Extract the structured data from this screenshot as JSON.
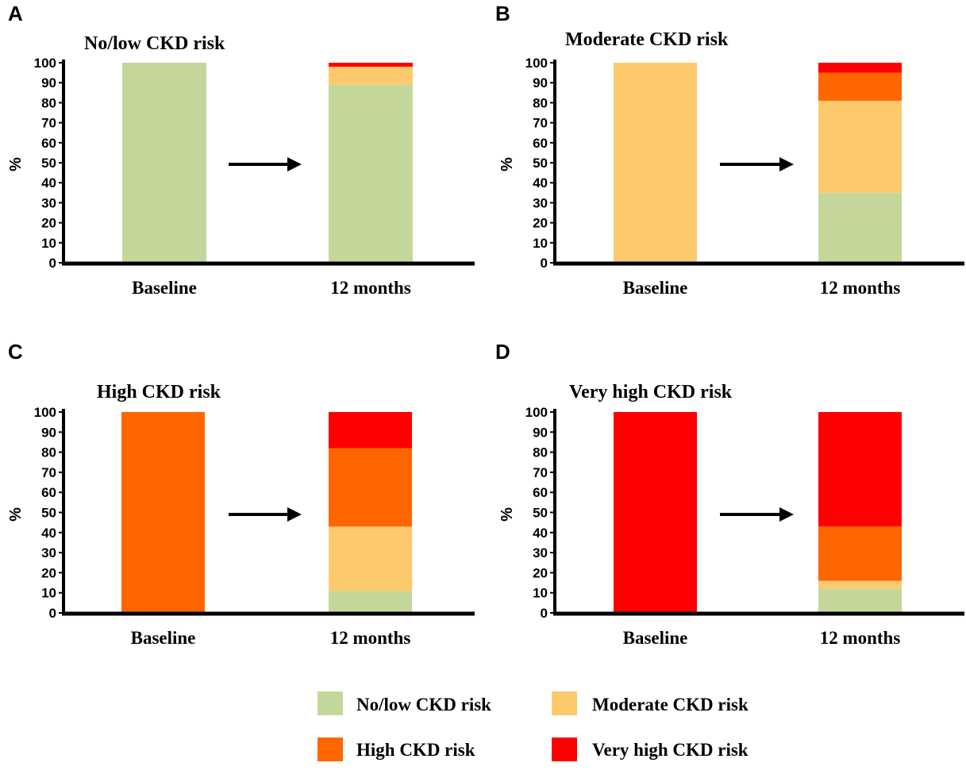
{
  "chart_data": [
    {
      "panel": "A",
      "type": "bar",
      "stacked": true,
      "title": "No/low CKD risk",
      "ylabel": "%",
      "ylim": [
        0,
        100
      ],
      "yticks": [
        "0",
        "10",
        "20",
        "30",
        "40",
        "50",
        "60",
        "70",
        "80",
        "90",
        "100"
      ],
      "categories": [
        "Baseline",
        "12 months"
      ],
      "series": [
        {
          "name": "No/low CKD risk",
          "color": "#c4d79b",
          "values": [
            100,
            89
          ]
        },
        {
          "name": "Moderate CKD risk",
          "color": "#fdc96d",
          "values": [
            0,
            9
          ]
        },
        {
          "name": "High CKD risk",
          "color": "#ff6600",
          "values": [
            0,
            0
          ]
        },
        {
          "name": "Very high CKD risk",
          "color": "#ff0000",
          "values": [
            0,
            2
          ]
        }
      ]
    },
    {
      "panel": "B",
      "type": "bar",
      "stacked": true,
      "title": "Moderate CKD risk",
      "ylabel": "%",
      "ylim": [
        0,
        100
      ],
      "yticks": [
        "0",
        "10",
        "20",
        "30",
        "40",
        "50",
        "60",
        "70",
        "80",
        "90",
        "100"
      ],
      "categories": [
        "Baseline",
        "12 months"
      ],
      "series": [
        {
          "name": "No/low CKD risk",
          "color": "#c4d79b",
          "values": [
            0,
            35
          ]
        },
        {
          "name": "Moderate CKD risk",
          "color": "#fdc96d",
          "values": [
            100,
            46
          ]
        },
        {
          "name": "High CKD risk",
          "color": "#ff6600",
          "values": [
            0,
            14
          ]
        },
        {
          "name": "Very high CKD risk",
          "color": "#ff0000",
          "values": [
            0,
            5
          ]
        }
      ]
    },
    {
      "panel": "C",
      "type": "bar",
      "stacked": true,
      "title": "High CKD risk",
      "ylabel": "%",
      "ylim": [
        0,
        100
      ],
      "yticks": [
        "0",
        "10",
        "20",
        "30",
        "40",
        "50",
        "60",
        "70",
        "80",
        "90",
        "100"
      ],
      "categories": [
        "Baseline",
        "12 months"
      ],
      "series": [
        {
          "name": "No/low CKD risk",
          "color": "#c4d79b",
          "values": [
            0,
            11
          ]
        },
        {
          "name": "Moderate CKD risk",
          "color": "#fdc96d",
          "values": [
            0,
            32
          ]
        },
        {
          "name": "High CKD risk",
          "color": "#ff6600",
          "values": [
            100,
            39
          ]
        },
        {
          "name": "Very high CKD risk",
          "color": "#ff0000",
          "values": [
            0,
            18
          ]
        }
      ]
    },
    {
      "panel": "D",
      "type": "bar",
      "stacked": true,
      "title": "Very high CKD risk",
      "ylabel": "%",
      "ylim": [
        0,
        100
      ],
      "yticks": [
        "0",
        "10",
        "20",
        "30",
        "40",
        "50",
        "60",
        "70",
        "80",
        "90",
        "100"
      ],
      "categories": [
        "Baseline",
        "12 months"
      ],
      "series": [
        {
          "name": "No/low CKD risk",
          "color": "#c4d79b",
          "values": [
            0,
            12
          ]
        },
        {
          "name": "Moderate CKD risk",
          "color": "#fdc96d",
          "values": [
            0,
            4
          ]
        },
        {
          "name": "High CKD risk",
          "color": "#ff6600",
          "values": [
            0,
            27
          ]
        },
        {
          "name": "Very high CKD risk",
          "color": "#ff0000",
          "values": [
            100,
            57
          ]
        }
      ]
    }
  ],
  "legend": [
    {
      "label": "No/low CKD risk",
      "color": "#c4d79b"
    },
    {
      "label": "Moderate CKD risk",
      "color": "#fdc96d"
    },
    {
      "label": "High CKD risk",
      "color": "#ff6600"
    },
    {
      "label": "Very high CKD risk",
      "color": "#ff0000"
    }
  ],
  "arrow_icon": "right-arrow-icon"
}
